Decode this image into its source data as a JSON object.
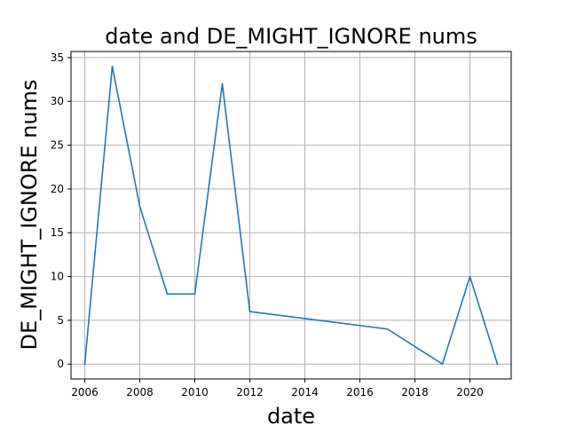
{
  "chart_data": {
    "type": "line",
    "title": "date and DE_MIGHT_IGNORE nums",
    "xlabel": "date",
    "ylabel": "DE_MIGHT_IGNORE nums",
    "grid": true,
    "xlim": [
      2005.5,
      2021.5
    ],
    "ylim": [
      -1.7,
      35.7
    ],
    "x_ticks": [
      2006,
      2008,
      2010,
      2012,
      2014,
      2016,
      2018,
      2020
    ],
    "y_ticks": [
      0,
      5,
      10,
      15,
      20,
      25,
      30,
      35
    ],
    "series": [
      {
        "color": "#1f77b4",
        "points": [
          {
            "x": 2006,
            "y": 0
          },
          {
            "x": 2007,
            "y": 34
          },
          {
            "x": 2008,
            "y": 18
          },
          {
            "x": 2009,
            "y": 8
          },
          {
            "x": 2010,
            "y": 8
          },
          {
            "x": 2011,
            "y": 32
          },
          {
            "x": 2012,
            "y": 6
          },
          {
            "x": 2017,
            "y": 4
          },
          {
            "x": 2019,
            "y": 0
          },
          {
            "x": 2020,
            "y": 10
          },
          {
            "x": 2021,
            "y": 0
          }
        ]
      }
    ]
  }
}
